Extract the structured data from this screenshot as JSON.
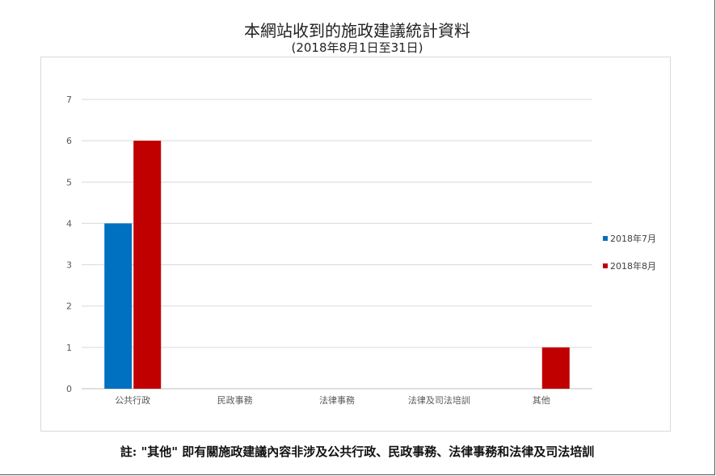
{
  "chart_data": {
    "type": "bar",
    "title": "本網站收到的施政建議統計資料",
    "subtitle": "(2018年8月1日至31日)",
    "categories": [
      "公共行政",
      "民政事務",
      "法律事務",
      "法律及司法培訓",
      "其他"
    ],
    "series": [
      {
        "name": "2018年7月",
        "color": "#0070C0",
        "values": [
          4,
          0,
          0,
          0,
          0
        ]
      },
      {
        "name": "2018年8月",
        "color": "#C00000",
        "values": [
          6,
          0,
          0,
          0,
          1
        ]
      }
    ],
    "yticks": [
      "0",
      "1",
      "2",
      "3",
      "4",
      "5",
      "6",
      "7"
    ],
    "ylim": [
      0,
      7
    ],
    "grid": true,
    "legend_position": "right"
  },
  "footnote": "註: \"其他\" 即有關施政建議內容非涉及公共行政、民政事務、法律事務和法律及司法培訓"
}
